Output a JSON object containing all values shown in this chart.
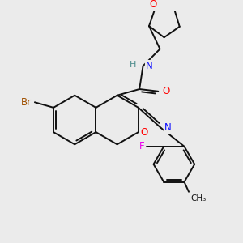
{
  "background_color": "#ebebeb",
  "figsize": [
    3.0,
    3.0
  ],
  "dpi": 100,
  "atom_colors": {
    "C": "#000000",
    "N": "#1010ff",
    "O": "#ff0000",
    "Br": "#a05000",
    "F": "#ee00ee",
    "H": "#4a8a8a"
  },
  "bond_color": "#111111",
  "bond_lw": 1.4,
  "dbo": 0.055
}
